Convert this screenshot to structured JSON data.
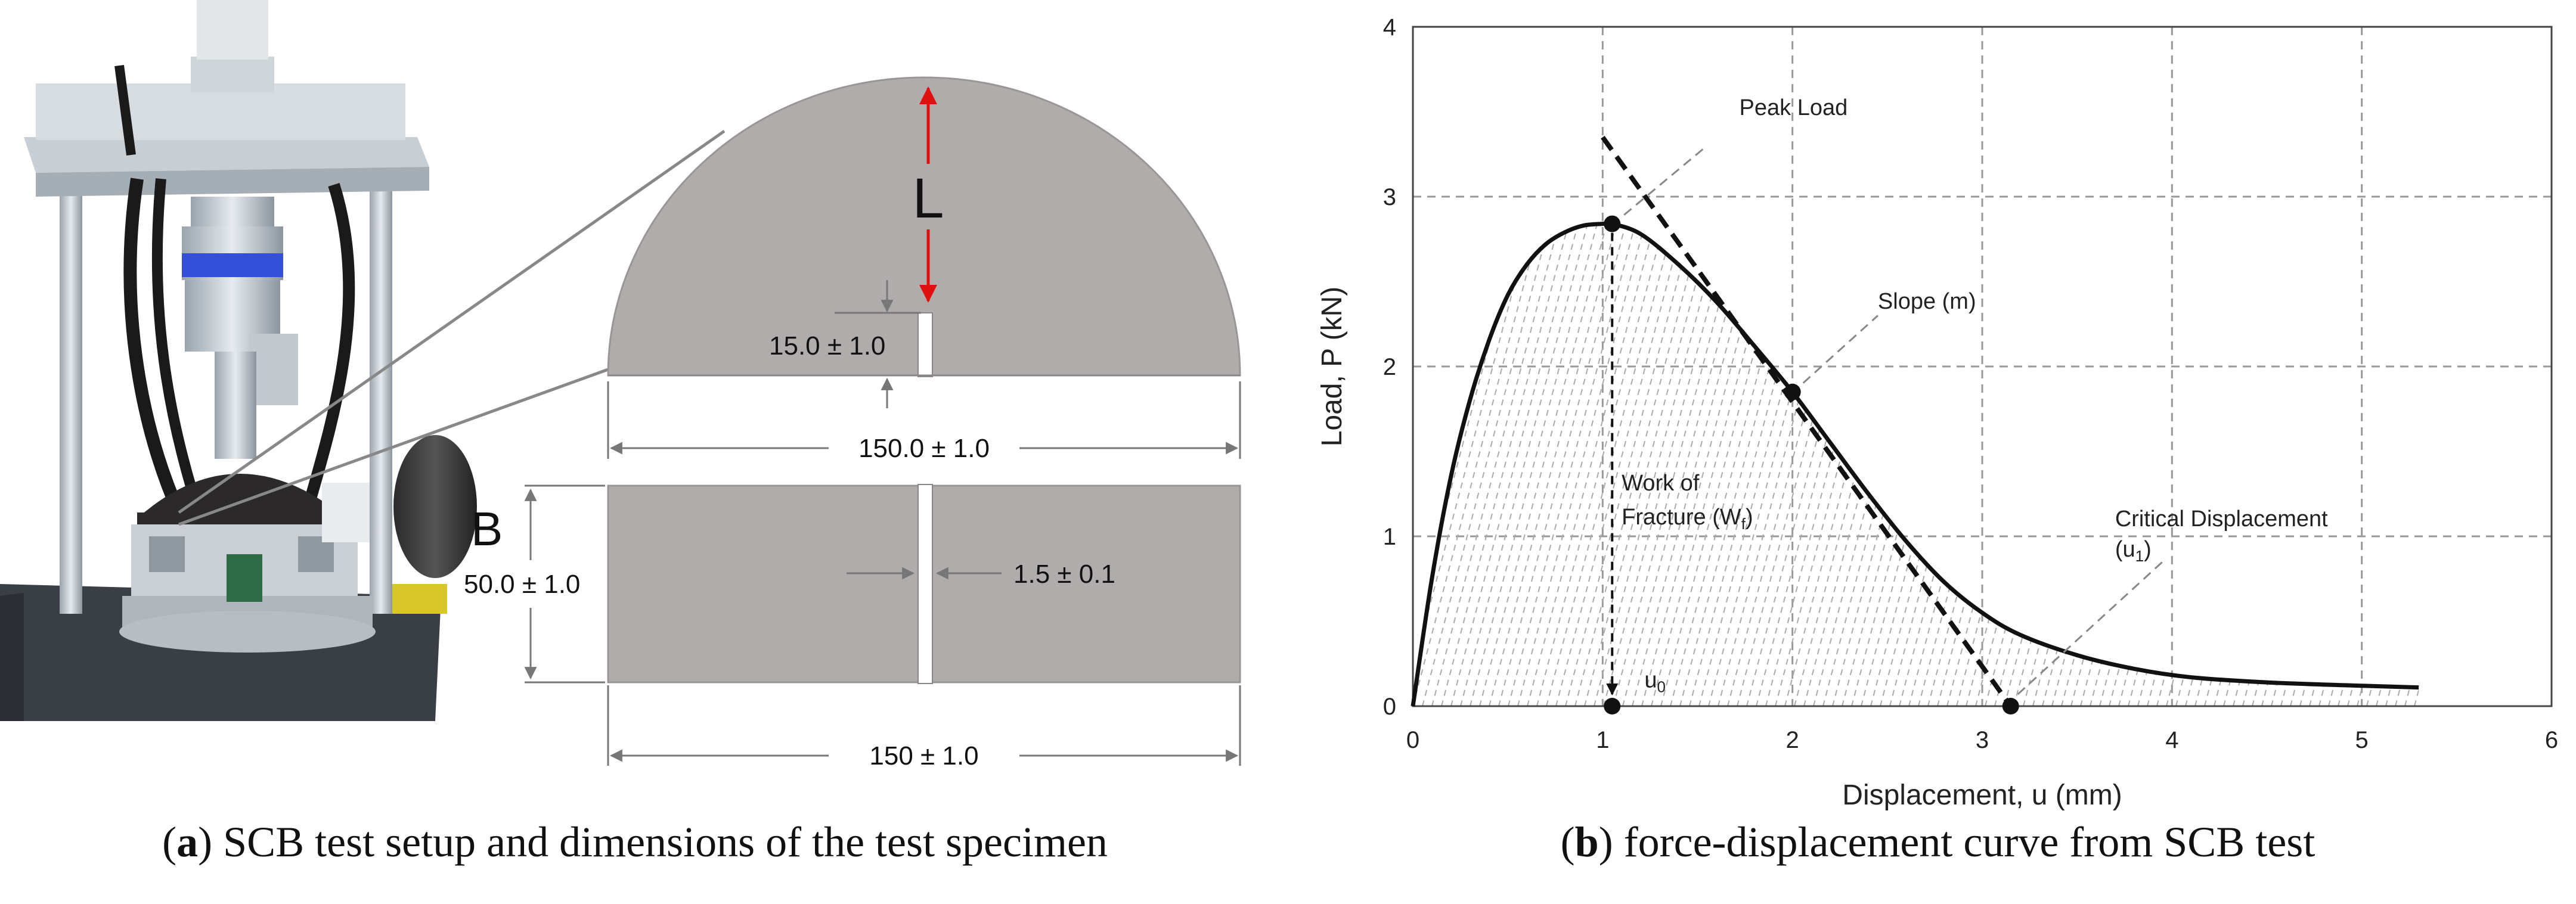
{
  "figure_a": {
    "caption_label": "a",
    "caption_text": " SCB test setup and dimensions of the test specimen",
    "labels": {
      "L": "L",
      "B": "B",
      "notch_depth": "15.0 ± 1.0",
      "top_width": "150.0 ± 1.0",
      "thickness": "50.0 ± 1.0",
      "notch_width": "1.5 ± 0.1",
      "bottom_width": "150 ± 1.0"
    },
    "colors": {
      "specimen": "#b0acac",
      "arrow": "#e01010"
    }
  },
  "figure_b": {
    "caption_label": "b",
    "caption_text": " force-displacement curve from SCB test",
    "chart_data": {
      "type": "line",
      "title": "",
      "xlabel": "Displacement, u (mm)",
      "ylabel": "Load, P (kN)",
      "xlim": [
        0,
        6
      ],
      "ylim": [
        0,
        4
      ],
      "xticks": [
        "0",
        "1",
        "2",
        "3",
        "4",
        "5",
        "6"
      ],
      "yticks": [
        "0",
        "1",
        "2",
        "3",
        "4"
      ],
      "grid": true,
      "series": [
        {
          "x": [
            0,
            0.1,
            0.2,
            0.3,
            0.4,
            0.5,
            0.6,
            0.7,
            0.8,
            0.9,
            1.0,
            1.05,
            1.2,
            1.4,
            1.6,
            1.8,
            2.0,
            2.2,
            2.4,
            2.6,
            2.8,
            3.0,
            3.2,
            3.5,
            3.8,
            4.1,
            4.5,
            5.0,
            5.3
          ],
          "y": [
            0,
            0.75,
            1.35,
            1.8,
            2.15,
            2.42,
            2.6,
            2.72,
            2.79,
            2.83,
            2.84,
            2.84,
            2.78,
            2.6,
            2.38,
            2.12,
            1.85,
            1.55,
            1.25,
            0.97,
            0.73,
            0.55,
            0.42,
            0.3,
            0.22,
            0.17,
            0.14,
            0.12,
            0.11
          ]
        }
      ],
      "tangent_line": {
        "x": [
          1.0,
          3.15
        ],
        "y": [
          3.35,
          0
        ]
      },
      "points": [
        {
          "x": 1.05,
          "y": 2.84
        },
        {
          "x": 2.0,
          "y": 1.85
        },
        {
          "x": 1.05,
          "y": 0
        },
        {
          "x": 3.15,
          "y": 0
        }
      ],
      "annotations": {
        "peak_load": "Peak Load",
        "slope": "Slope (m)",
        "work_of_fracture_line1": "Work of",
        "work_of_fracture_line2": "Fracture (W",
        "work_of_fracture_sub": "f",
        "work_of_fracture_close": ")",
        "critical_displacement_line1": "Critical Displacement",
        "critical_displacement_line2": "(u",
        "critical_displacement_sub": "1",
        "critical_displacement_close": ")",
        "u0": "u",
        "u0_sub": "0"
      }
    }
  }
}
